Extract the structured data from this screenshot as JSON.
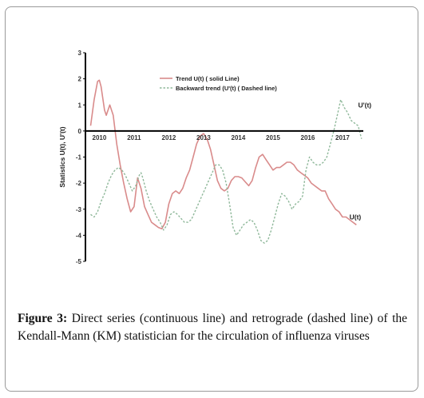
{
  "caption": {
    "label": "Figure 3:",
    "text": "Direct series (continuous line) and retrograde (dashed line) of the Kendall-Mann (KM) statistician for the circulation of influenza viruses"
  },
  "chart_data": {
    "type": "line",
    "ylabel": "Statistics U(t), U'(t)",
    "ylim": [
      -5,
      3
    ],
    "yticks": [
      3,
      2,
      1,
      0,
      -1,
      -2,
      -3,
      -4,
      -5
    ],
    "xlim": [
      2009.6,
      2017.6
    ],
    "xticks": [
      2010,
      2011,
      2012,
      2013,
      2014,
      2015,
      2016,
      2017
    ],
    "legend": {
      "position": "top-center",
      "entries": [
        {
          "label": "Trend U(t) ( solid Line)",
          "series": "U(t)"
        },
        {
          "label": "Backward trend (U'(t) ( Dashed line)",
          "series": "U'(t)"
        }
      ]
    },
    "colors": {
      "U(t)": "#d98b8b",
      "U'(t)": "#8fb89a",
      "axis": "#000000"
    },
    "series": [
      {
        "name": "U(t)",
        "style": "solid",
        "x": [
          2009.75,
          2009.85,
          2009.95,
          2010.0,
          2010.05,
          2010.15,
          2010.2,
          2010.3,
          2010.4,
          2010.5,
          2010.6,
          2010.7,
          2010.8,
          2010.9,
          2011.0,
          2011.1,
          2011.2,
          2011.3,
          2011.4,
          2011.5,
          2011.6,
          2011.7,
          2011.8,
          2011.9,
          2012.0,
          2012.1,
          2012.2,
          2012.3,
          2012.4,
          2012.5,
          2012.6,
          2012.7,
          2012.8,
          2012.9,
          2013.0,
          2013.1,
          2013.2,
          2013.3,
          2013.4,
          2013.5,
          2013.6,
          2013.7,
          2013.8,
          2013.9,
          2014.0,
          2014.1,
          2014.2,
          2014.3,
          2014.4,
          2014.5,
          2014.6,
          2014.7,
          2014.8,
          2014.9,
          2015.0,
          2015.1,
          2015.2,
          2015.3,
          2015.4,
          2015.5,
          2015.6,
          2015.7,
          2015.8,
          2015.9,
          2016.0,
          2016.1,
          2016.2,
          2016.3,
          2016.4,
          2016.5,
          2016.6,
          2016.7,
          2016.8,
          2016.9,
          2017.0,
          2017.1,
          2017.2,
          2017.3,
          2017.4
        ],
        "values": [
          0.2,
          1.2,
          1.9,
          1.95,
          1.7,
          0.8,
          0.6,
          1.0,
          0.6,
          -0.5,
          -1.3,
          -2.0,
          -2.6,
          -3.1,
          -2.9,
          -1.8,
          -2.2,
          -2.9,
          -3.2,
          -3.5,
          -3.6,
          -3.7,
          -3.75,
          -3.5,
          -2.8,
          -2.4,
          -2.3,
          -2.4,
          -2.2,
          -1.8,
          -1.5,
          -1.0,
          -0.5,
          -0.2,
          -0.1,
          -0.3,
          -0.7,
          -1.3,
          -1.9,
          -2.2,
          -2.3,
          -2.2,
          -1.9,
          -1.75,
          -1.75,
          -1.8,
          -1.95,
          -2.1,
          -1.9,
          -1.4,
          -1.0,
          -0.9,
          -1.1,
          -1.3,
          -1.5,
          -1.4,
          -1.4,
          -1.3,
          -1.2,
          -1.2,
          -1.3,
          -1.5,
          -1.6,
          -1.7,
          -1.8,
          -2.0,
          -2.1,
          -2.2,
          -2.3,
          -2.3,
          -2.6,
          -2.8,
          -3.0,
          -3.1,
          -3.3,
          -3.3,
          -3.4,
          -3.5,
          -3.6
        ]
      },
      {
        "name": "U'(t)",
        "style": "dashed",
        "x": [
          2009.75,
          2009.85,
          2009.95,
          2010.05,
          2010.15,
          2010.25,
          2010.35,
          2010.45,
          2010.55,
          2010.65,
          2010.75,
          2010.85,
          2010.95,
          2011.05,
          2011.15,
          2011.2,
          2011.25,
          2011.35,
          2011.45,
          2011.55,
          2011.65,
          2011.75,
          2011.85,
          2011.95,
          2012.05,
          2012.15,
          2012.25,
          2012.35,
          2012.45,
          2012.55,
          2012.65,
          2012.75,
          2012.85,
          2012.95,
          2013.05,
          2013.15,
          2013.25,
          2013.35,
          2013.45,
          2013.55,
          2013.65,
          2013.75,
          2013.85,
          2013.95,
          2014.05,
          2014.15,
          2014.25,
          2014.35,
          2014.45,
          2014.55,
          2014.65,
          2014.75,
          2014.85,
          2014.95,
          2015.05,
          2015.15,
          2015.25,
          2015.35,
          2015.45,
          2015.55,
          2015.65,
          2015.75,
          2015.85,
          2015.95,
          2016.05,
          2016.15,
          2016.25,
          2016.35,
          2016.45,
          2016.55,
          2016.65,
          2016.75,
          2016.85,
          2016.95,
          2017.05,
          2017.15,
          2017.25,
          2017.35,
          2017.45,
          2017.55
        ],
        "values": [
          -3.2,
          -3.3,
          -3.1,
          -2.7,
          -2.4,
          -2.0,
          -1.7,
          -1.5,
          -1.4,
          -1.5,
          -1.7,
          -2.0,
          -2.3,
          -2.1,
          -1.7,
          -1.6,
          -1.8,
          -2.3,
          -2.7,
          -3.0,
          -3.3,
          -3.5,
          -3.8,
          -3.6,
          -3.2,
          -3.1,
          -3.2,
          -3.35,
          -3.5,
          -3.5,
          -3.4,
          -3.1,
          -2.8,
          -2.5,
          -2.2,
          -1.9,
          -1.6,
          -1.3,
          -1.3,
          -1.5,
          -2.0,
          -2.8,
          -3.7,
          -4.0,
          -3.8,
          -3.6,
          -3.5,
          -3.4,
          -3.5,
          -3.8,
          -4.2,
          -4.3,
          -4.2,
          -3.8,
          -3.3,
          -2.8,
          -2.4,
          -2.5,
          -2.7,
          -3.0,
          -2.8,
          -2.7,
          -2.5,
          -1.5,
          -1.0,
          -1.2,
          -1.3,
          -1.3,
          -1.2,
          -1.0,
          -0.5,
          0.0,
          0.6,
          1.2,
          0.9,
          0.7,
          0.4,
          0.3,
          0.2,
          -0.3
        ]
      }
    ],
    "annotations": [
      {
        "text": "U'(t)",
        "x": 2017.45,
        "y": 1.0
      },
      {
        "text": "U(t)",
        "x": 2017.2,
        "y": -3.3
      }
    ]
  }
}
